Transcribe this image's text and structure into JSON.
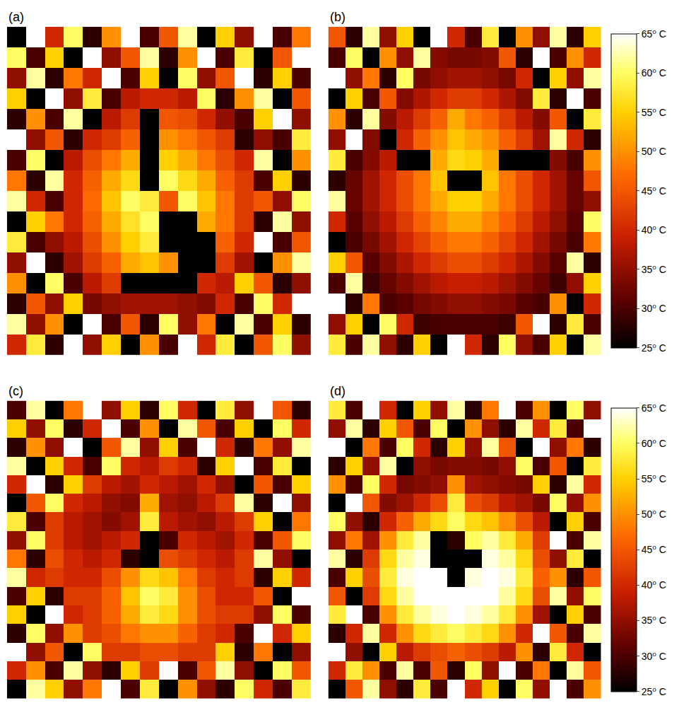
{
  "chart_data": [
    {
      "type": "heatmap",
      "title": "(a)",
      "tick_labels": false,
      "cells": [
        [
          25,
          65,
          40,
          60,
          28,
          50,
          65,
          30,
          45,
          62,
          25,
          55,
          35,
          65,
          30,
          48
        ],
        [
          60,
          30,
          55,
          25,
          65,
          35,
          45,
          62,
          28,
          50,
          65,
          30,
          58,
          25,
          45,
          65
        ],
        [
          35,
          62,
          28,
          48,
          40,
          65,
          30,
          55,
          25,
          60,
          35,
          45,
          65,
          28,
          55,
          30
        ],
        [
          55,
          25,
          65,
          35,
          58,
          30,
          38,
          40,
          40,
          38,
          60,
          28,
          50,
          62,
          25,
          45
        ],
        [
          28,
          50,
          30,
          62,
          25,
          38,
          42,
          25,
          45,
          44,
          40,
          35,
          30,
          55,
          65,
          35
        ],
        [
          65,
          35,
          45,
          28,
          40,
          42,
          46,
          25,
          50,
          48,
          45,
          42,
          28,
          35,
          30,
          58
        ],
        [
          30,
          60,
          25,
          38,
          44,
          48,
          52,
          25,
          55,
          52,
          48,
          44,
          40,
          62,
          25,
          50
        ],
        [
          48,
          28,
          62,
          40,
          46,
          52,
          56,
          25,
          60,
          56,
          52,
          46,
          42,
          30,
          55,
          28
        ],
        [
          62,
          40,
          30,
          40,
          47,
          54,
          60,
          58,
          45,
          60,
          54,
          48,
          42,
          45,
          35,
          60
        ],
        [
          25,
          55,
          48,
          40,
          46,
          52,
          57,
          60,
          25,
          25,
          52,
          48,
          42,
          28,
          62,
          35
        ],
        [
          58,
          30,
          35,
          38,
          44,
          50,
          55,
          58,
          25,
          25,
          25,
          46,
          40,
          65,
          30,
          45
        ],
        [
          35,
          65,
          28,
          36,
          42,
          46,
          52,
          54,
          50,
          25,
          25,
          42,
          36,
          25,
          50,
          62
        ],
        [
          50,
          25,
          60,
          30,
          38,
          42,
          25,
          25,
          25,
          25,
          40,
          38,
          55,
          45,
          28,
          35
        ],
        [
          28,
          45,
          35,
          55,
          33,
          35,
          36,
          36,
          36,
          35,
          34,
          40,
          30,
          60,
          40,
          65
        ],
        [
          62,
          35,
          50,
          25,
          65,
          30,
          45,
          28,
          60,
          35,
          48,
          25,
          62,
          30,
          55,
          28
        ],
        [
          40,
          58,
          28,
          65,
          35,
          55,
          25,
          50,
          30,
          65,
          40,
          58,
          25,
          45,
          60,
          35
        ]
      ]
    },
    {
      "type": "heatmap",
      "title": "(b)",
      "tick_labels": false,
      "cells": [
        [
          45,
          28,
          62,
          35,
          55,
          25,
          65,
          40,
          30,
          58,
          25,
          50,
          35,
          62,
          28,
          55
        ],
        [
          30,
          60,
          25,
          50,
          35,
          62,
          34,
          33,
          33,
          34,
          45,
          28,
          65,
          30,
          50,
          40
        ],
        [
          65,
          35,
          48,
          28,
          60,
          33,
          35,
          36,
          36,
          35,
          33,
          40,
          25,
          55,
          35,
          62
        ],
        [
          25,
          55,
          30,
          45,
          34,
          37,
          40,
          42,
          42,
          40,
          37,
          34,
          58,
          28,
          65,
          30
        ],
        [
          50,
          28,
          62,
          34,
          38,
          42,
          46,
          52,
          48,
          46,
          42,
          38,
          34,
          45,
          25,
          58
        ],
        [
          35,
          65,
          34,
          25,
          40,
          46,
          50,
          54,
          52,
          50,
          46,
          42,
          36,
          62,
          40,
          28
        ],
        [
          58,
          30,
          34,
          38,
          25,
          25,
          52,
          56,
          55,
          52,
          25,
          25,
          25,
          34,
          30,
          50
        ],
        [
          28,
          32,
          36,
          40,
          44,
          48,
          54,
          25,
          25,
          54,
          48,
          44,
          40,
          36,
          32,
          45
        ],
        [
          62,
          32,
          36,
          40,
          44,
          48,
          52,
          55,
          55,
          52,
          48,
          44,
          40,
          36,
          32,
          35
        ],
        [
          40,
          31,
          35,
          38,
          42,
          46,
          49,
          52,
          52,
          49,
          46,
          42,
          38,
          35,
          31,
          60
        ],
        [
          25,
          30,
          33,
          36,
          40,
          43,
          46,
          48,
          48,
          46,
          43,
          40,
          36,
          33,
          30,
          48
        ],
        [
          55,
          45,
          31,
          34,
          37,
          40,
          42,
          44,
          44,
          42,
          40,
          37,
          34,
          31,
          62,
          28
        ],
        [
          30,
          62,
          29,
          32,
          34,
          36,
          38,
          39,
          39,
          38,
          36,
          34,
          32,
          29,
          35,
          55
        ],
        [
          65,
          28,
          48,
          30,
          31,
          33,
          34,
          35,
          35,
          34,
          33,
          31,
          30,
          50,
          25,
          40
        ],
        [
          35,
          55,
          25,
          60,
          40,
          29,
          30,
          30,
          30,
          30,
          29,
          45,
          65,
          28,
          58,
          30
        ],
        [
          58,
          30,
          62,
          35,
          28,
          55,
          25,
          65,
          40,
          28,
          60,
          35,
          30,
          55,
          25,
          62
        ]
      ],
      "colorbar": {
        "range": [
          25,
          65
        ],
        "ticks": [
          {
            "value": 25,
            "label": "25⁰ C"
          },
          {
            "value": 30,
            "label": "30⁰ C"
          },
          {
            "value": 35,
            "label": "35⁰ C"
          },
          {
            "value": 40,
            "label": "40⁰ C"
          },
          {
            "value": 45,
            "label": "45⁰ C"
          },
          {
            "value": 50,
            "label": "50⁰ C"
          },
          {
            "value": 55,
            "label": "55⁰ C"
          },
          {
            "value": 60,
            "label": "60⁰ C"
          },
          {
            "value": 65,
            "label": "65⁰ C"
          }
        ]
      }
    },
    {
      "type": "heatmap",
      "title": "(c)",
      "tick_labels": false,
      "cells": [
        [
          30,
          62,
          25,
          48,
          65,
          35,
          55,
          28,
          60,
          40,
          25,
          58,
          35,
          65,
          45,
          28
        ],
        [
          55,
          35,
          60,
          28,
          40,
          65,
          30,
          50,
          25,
          62,
          45,
          30,
          55,
          25,
          60,
          40
        ],
        [
          28,
          50,
          35,
          65,
          25,
          45,
          62,
          35,
          55,
          30,
          65,
          40,
          28,
          48,
          35,
          62
        ],
        [
          62,
          25,
          55,
          40,
          30,
          60,
          40,
          38,
          42,
          40,
          28,
          55,
          65,
          30,
          58,
          25
        ],
        [
          40,
          65,
          28,
          55,
          42,
          38,
          36,
          40,
          38,
          36,
          40,
          35,
          25,
          45,
          30,
          55
        ],
        [
          25,
          45,
          60,
          40,
          38,
          35,
          34,
          52,
          36,
          35,
          38,
          42,
          62,
          28,
          65,
          35
        ],
        [
          58,
          30,
          42,
          38,
          36,
          34,
          36,
          58,
          38,
          36,
          35,
          38,
          42,
          55,
          25,
          48
        ],
        [
          35,
          60,
          42,
          38,
          36,
          38,
          40,
          25,
          30,
          40,
          38,
          36,
          40,
          30,
          45,
          60
        ],
        [
          48,
          28,
          44,
          40,
          38,
          40,
          28,
          25,
          44,
          42,
          40,
          38,
          42,
          62,
          35,
          25
        ],
        [
          62,
          40,
          42,
          40,
          40,
          44,
          50,
          56,
          54,
          48,
          42,
          40,
          42,
          28,
          55,
          40
        ],
        [
          30,
          55,
          28,
          42,
          42,
          46,
          54,
          60,
          58,
          50,
          44,
          40,
          40,
          45,
          25,
          65
        ],
        [
          55,
          25,
          65,
          40,
          42,
          46,
          52,
          58,
          56,
          50,
          44,
          42,
          42,
          35,
          60,
          30
        ],
        [
          28,
          60,
          35,
          50,
          42,
          44,
          48,
          50,
          50,
          46,
          42,
          40,
          30,
          65,
          40,
          55
        ],
        [
          65,
          35,
          45,
          25,
          60,
          42,
          42,
          44,
          44,
          42,
          42,
          55,
          28,
          48,
          25,
          35
        ],
        [
          40,
          50,
          30,
          62,
          35,
          28,
          55,
          42,
          65,
          30,
          45,
          62,
          35,
          25,
          60,
          45
        ],
        [
          25,
          62,
          55,
          35,
          48,
          65,
          30,
          58,
          25,
          50,
          35,
          28,
          60,
          40,
          30,
          58
        ]
      ]
    },
    {
      "type": "heatmap",
      "title": "(d)",
      "tick_labels": false,
      "cells": [
        [
          58,
          30,
          65,
          40,
          25,
          55,
          35,
          62,
          28,
          48,
          65,
          30,
          50,
          25,
          60,
          35
        ],
        [
          35,
          62,
          28,
          55,
          45,
          30,
          60,
          25,
          50,
          35,
          28,
          62,
          40,
          58,
          30,
          65
        ],
        [
          65,
          25,
          48,
          30,
          60,
          40,
          28,
          55,
          35,
          62,
          45,
          25,
          65,
          35,
          48,
          28
        ],
        [
          28,
          55,
          35,
          62,
          25,
          35,
          33,
          34,
          34,
          33,
          35,
          60,
          30,
          45,
          25,
          58
        ],
        [
          50,
          30,
          60,
          40,
          33,
          34,
          35,
          50,
          36,
          35,
          34,
          33,
          55,
          28,
          62,
          40
        ],
        [
          25,
          65,
          45,
          34,
          36,
          40,
          44,
          58,
          44,
          42,
          38,
          36,
          33,
          60,
          35,
          50
        ],
        [
          60,
          35,
          28,
          40,
          46,
          52,
          56,
          60,
          56,
          54,
          50,
          44,
          38,
          25,
          55,
          30
        ],
        [
          35,
          48,
          36,
          50,
          58,
          62,
          25,
          28,
          60,
          62,
          58,
          52,
          42,
          65,
          30,
          62
        ],
        [
          62,
          28,
          42,
          56,
          62,
          64,
          25,
          25,
          25,
          64,
          62,
          56,
          44,
          35,
          58,
          25
        ],
        [
          30,
          55,
          44,
          58,
          64,
          65,
          65,
          25,
          64,
          65,
          64,
          58,
          46,
          50,
          28,
          45
        ],
        [
          45,
          25,
          42,
          56,
          62,
          65,
          65,
          65,
          65,
          65,
          62,
          56,
          44,
          62,
          35,
          60
        ],
        [
          58,
          65,
          30,
          50,
          58,
          62,
          64,
          65,
          64,
          62,
          58,
          50,
          36,
          25,
          55,
          30
        ],
        [
          28,
          40,
          62,
          40,
          50,
          56,
          58,
          60,
          58,
          56,
          50,
          40,
          65,
          45,
          30,
          62
        ],
        [
          65,
          35,
          25,
          55,
          38,
          42,
          44,
          46,
          44,
          42,
          38,
          50,
          28,
          58,
          40,
          25
        ],
        [
          40,
          58,
          50,
          30,
          62,
          30,
          45,
          28,
          60,
          35,
          65,
          30,
          48,
          25,
          62,
          45
        ],
        [
          25,
          45,
          62,
          35,
          28,
          58,
          30,
          65,
          40,
          55,
          25,
          60,
          35,
          65,
          30,
          50
        ]
      ],
      "colorbar": {
        "range": [
          25,
          65
        ],
        "ticks": [
          {
            "value": 25,
            "label": "25⁰ C"
          },
          {
            "value": 30,
            "label": "30⁰ C"
          },
          {
            "value": 35,
            "label": "35⁰ C"
          },
          {
            "value": 40,
            "label": "40⁰ C"
          },
          {
            "value": 45,
            "label": "45⁰ C"
          },
          {
            "value": 50,
            "label": "50⁰ C"
          },
          {
            "value": 55,
            "label": "55⁰ C"
          },
          {
            "value": 60,
            "label": "60⁰ C"
          },
          {
            "value": 65,
            "label": "65⁰ C"
          }
        ]
      }
    }
  ]
}
